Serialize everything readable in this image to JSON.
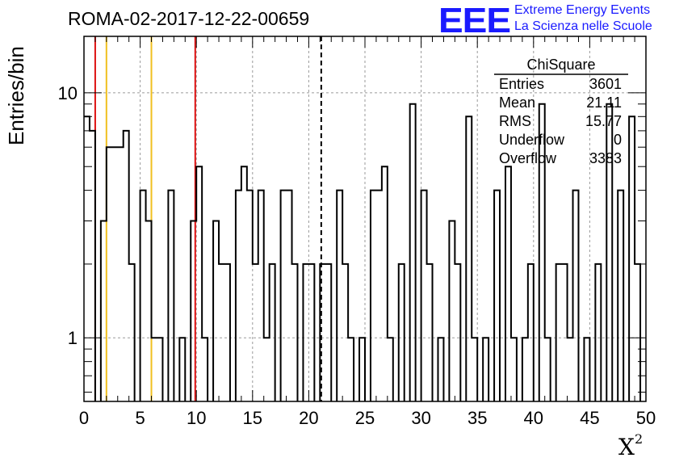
{
  "header": {
    "run_title": "ROMA-02-2017-12-22-00659",
    "logo_text": "EEE",
    "logo_line1": "Extreme Energy Events",
    "logo_line2": "La Scienza nelle Scuole"
  },
  "colors": {
    "histogram": "#000000",
    "red_markers": "#dd1111",
    "yellow_markers": "#f0c020",
    "logo": "#1a1aff",
    "grid": "#9a9a9a"
  },
  "stats": {
    "title": "ChiSquare",
    "rows": [
      {
        "label": "Entries",
        "value": "3601"
      },
      {
        "label": "Mean",
        "value": "21.11"
      },
      {
        "label": "RMS",
        "value": "15.77"
      },
      {
        "label": "Underflow",
        "value": "0"
      },
      {
        "label": "Overflow",
        "value": "3383"
      }
    ]
  },
  "chart_data": {
    "type": "histogram",
    "xlabel": "X",
    "xlabel_superscript": "2",
    "ylabel": "Entries/bin",
    "xlim": [
      0,
      50
    ],
    "ylim": [
      0.55,
      17
    ],
    "yscale": "log",
    "grid": true,
    "x_ticks": [
      0,
      5,
      10,
      15,
      20,
      25,
      30,
      35,
      40,
      45,
      50
    ],
    "y_ticks": [
      1,
      10
    ],
    "bin_width": 0.5,
    "bin_start": 0,
    "values": [
      8,
      7,
      0,
      3,
      6,
      6,
      6,
      7,
      2,
      0,
      4,
      3,
      1,
      1,
      0,
      4,
      0,
      1,
      0,
      3,
      5,
      1,
      0,
      3,
      2,
      2,
      0,
      4,
      5,
      4,
      2,
      4,
      1,
      2,
      0,
      4,
      4,
      2,
      0,
      2,
      2,
      0,
      2,
      2,
      0,
      4,
      2,
      1,
      0,
      1,
      0,
      4,
      4,
      5,
      1,
      0,
      2,
      0,
      9,
      0,
      4,
      2,
      0,
      1,
      0,
      3,
      2,
      0,
      8,
      1,
      0,
      1,
      0,
      4,
      0,
      5,
      1,
      0,
      1,
      2,
      0,
      9,
      1,
      0,
      2,
      2,
      1,
      4,
      0,
      1,
      0,
      2,
      0,
      9,
      0,
      4,
      0,
      8,
      2,
      0
    ],
    "vertical_lines": [
      {
        "x": 1.0,
        "color": "red",
        "style": "solid"
      },
      {
        "x": 9.9,
        "color": "red",
        "style": "solid"
      },
      {
        "x": 2.0,
        "color": "yellow",
        "style": "solid"
      },
      {
        "x": 6.0,
        "color": "yellow",
        "style": "solid"
      },
      {
        "x": 21.11,
        "color": "black",
        "style": "dashed"
      }
    ]
  }
}
